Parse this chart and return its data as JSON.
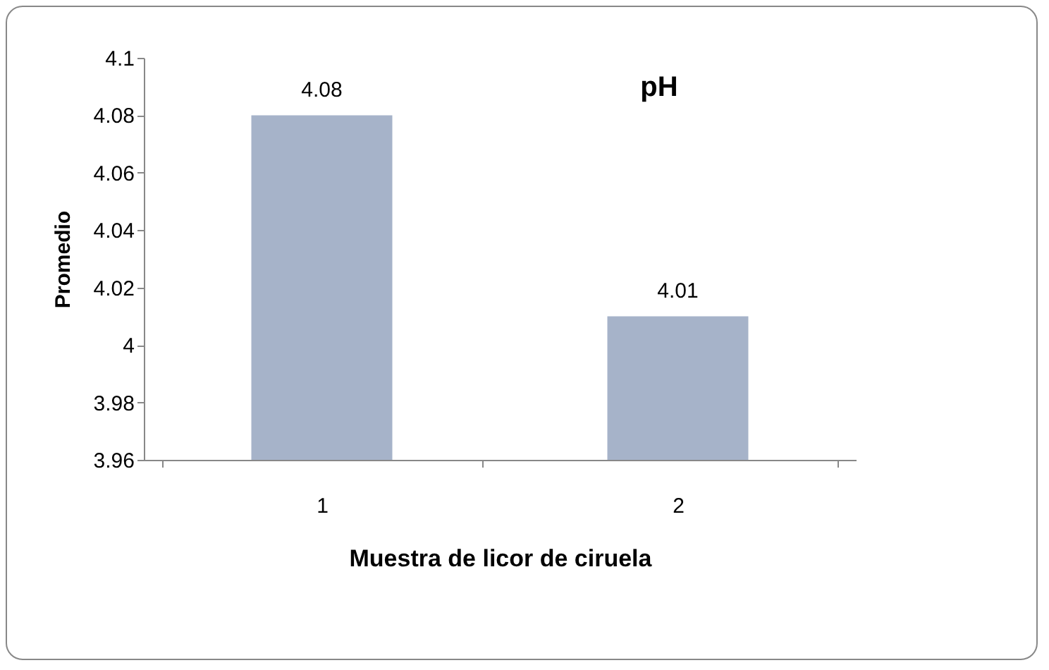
{
  "chart_data": {
    "type": "bar",
    "title": "pH",
    "xlabel": "Muestra de licor de ciruela",
    "ylabel": "Promedio",
    "categories": [
      "1",
      "2"
    ],
    "values": [
      4.08,
      4.01
    ],
    "data_labels": true,
    "color": "#a6b3c9",
    "ylim": [
      3.96,
      4.1
    ],
    "yticks": [
      3.96,
      3.98,
      4,
      4.02,
      4.04,
      4.06,
      4.08,
      4.1
    ],
    "grid": false
  }
}
